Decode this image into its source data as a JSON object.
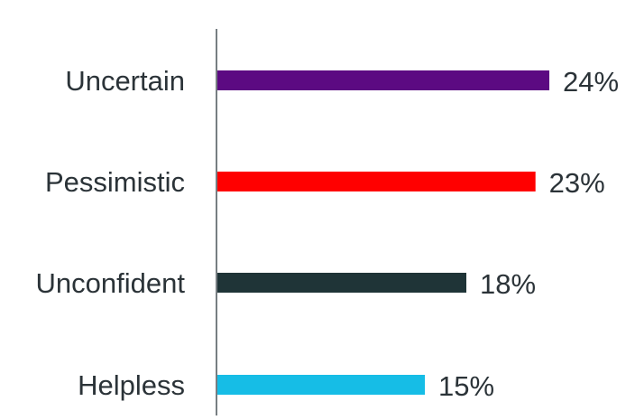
{
  "chart_data": {
    "type": "bar",
    "orientation": "horizontal",
    "title": "",
    "xlabel": "",
    "ylabel": "",
    "xlim": [
      0,
      24
    ],
    "grid": false,
    "legend": "none",
    "value_suffix": "%",
    "categories": [
      "Uncertain",
      "Pessimistic",
      "Unconfident",
      "Helpless"
    ],
    "values": [
      24,
      23,
      18,
      15
    ],
    "value_labels": [
      "24%",
      "23%",
      "18%",
      "15%"
    ],
    "colors": [
      "#5c0a82",
      "#ff0000",
      "#1f3437",
      "#16bde6"
    ]
  },
  "style": {
    "text_color": "#2b3338",
    "axis_color": "#4a5358",
    "background": "#ffffff"
  }
}
